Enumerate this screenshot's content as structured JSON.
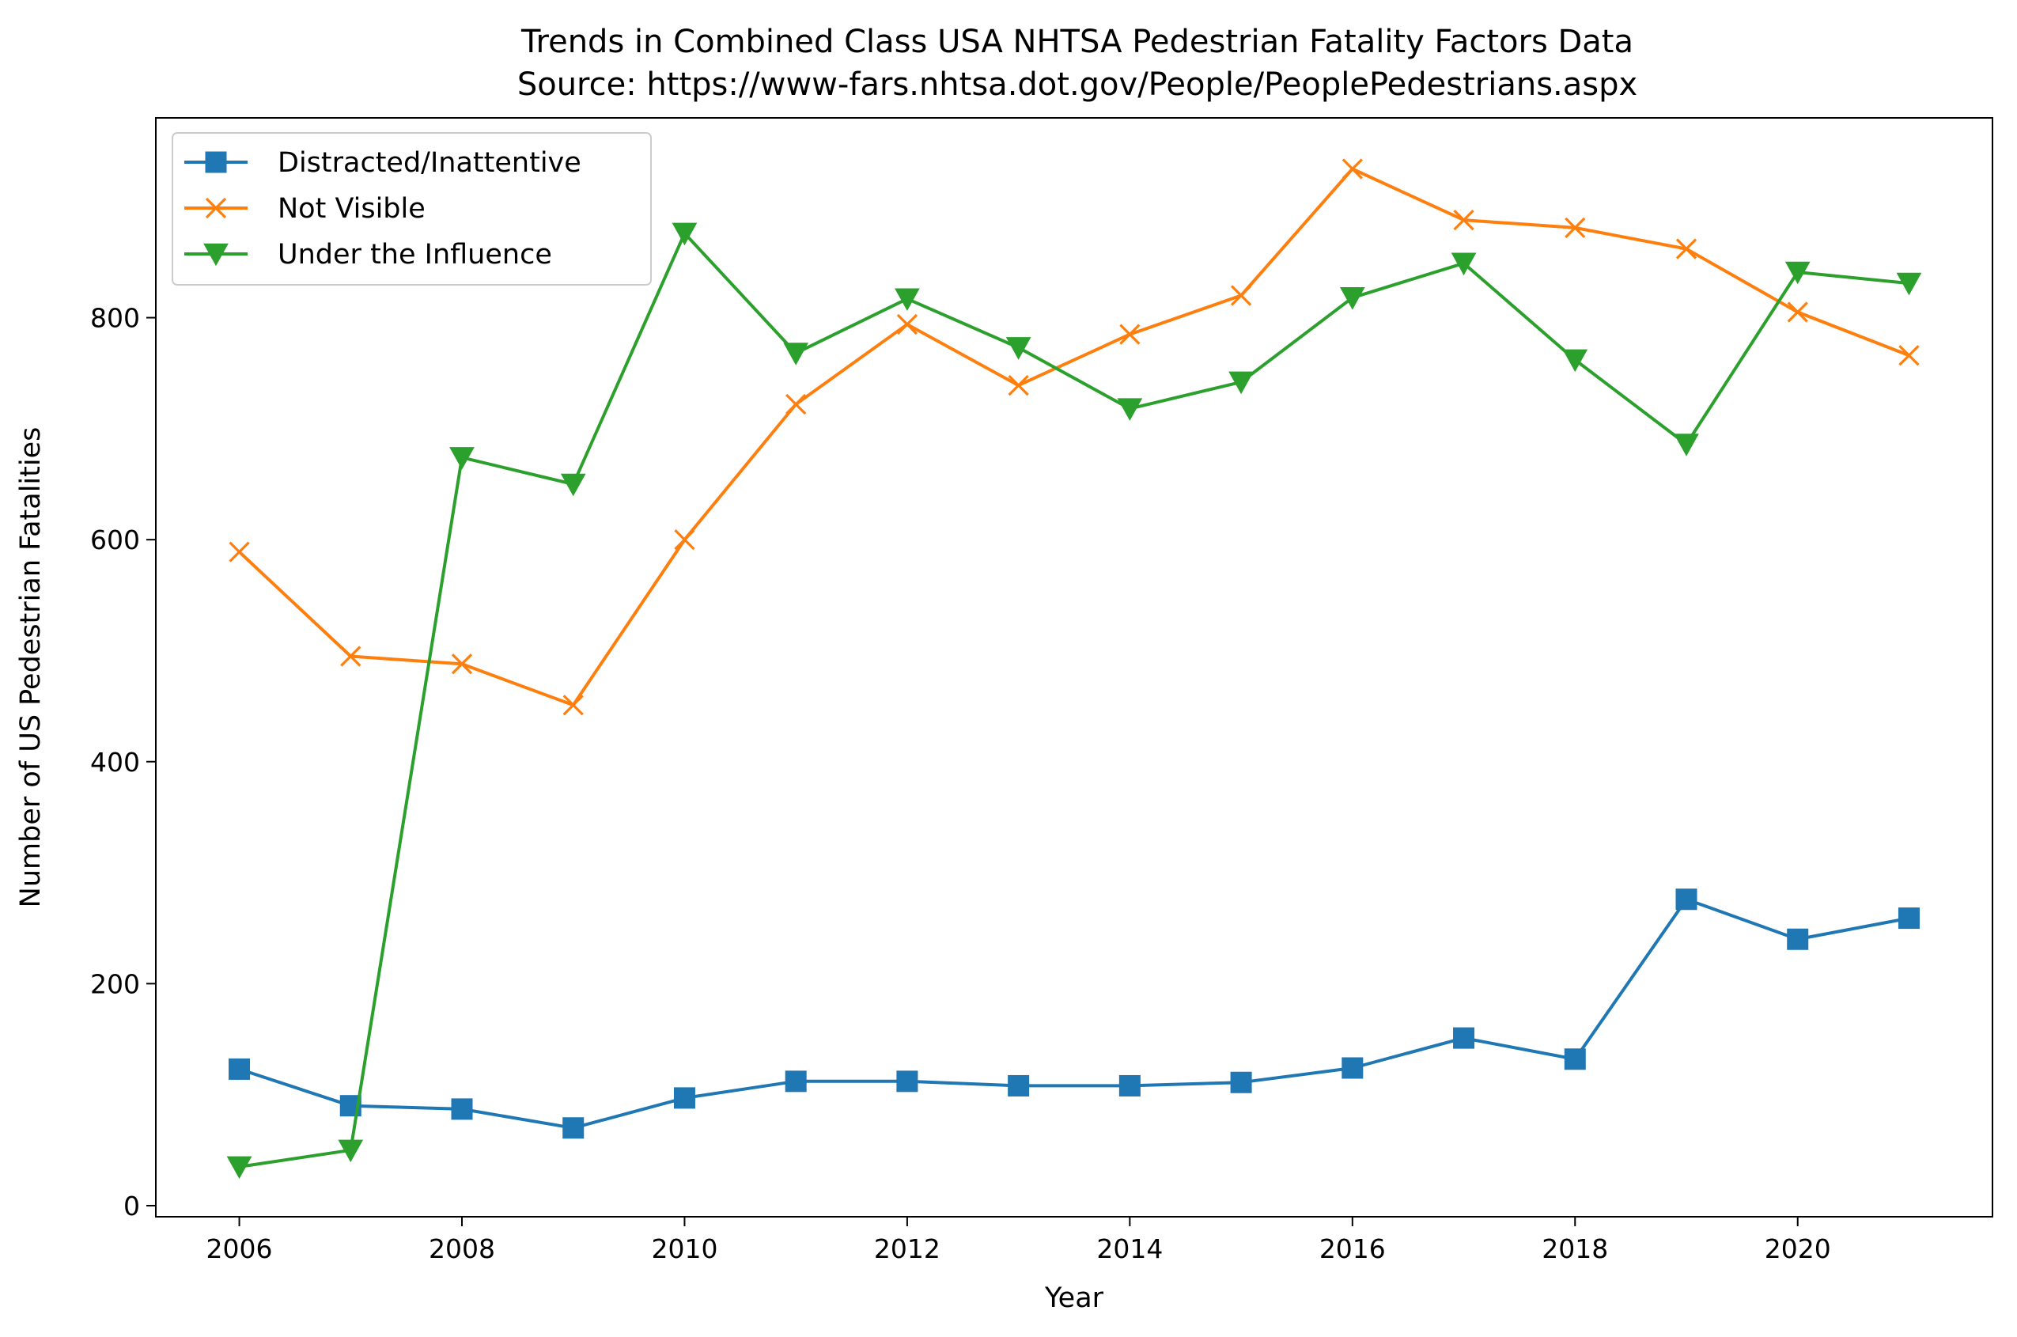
{
  "chart_data": {
    "type": "line",
    "title": "Trends in Combined Class USA NHTSA Pedestrian Fatality Factors Data",
    "subtitle": "Source: https://www-fars.nhtsa.dot.gov/People/PeoplePedestrians.aspx",
    "xlabel": "Year",
    "ylabel": "Number of US Pedestrian Fatalities",
    "xlim": [
      2005.25,
      2021.75
    ],
    "ylim": [
      -10,
      980
    ],
    "xticks": [
      2006,
      2008,
      2010,
      2012,
      2014,
      2016,
      2018,
      2020
    ],
    "yticks": [
      0,
      200,
      400,
      600,
      800
    ],
    "grid": false,
    "legend_position": "top-left",
    "x": [
      2006,
      2007,
      2008,
      2009,
      2010,
      2011,
      2012,
      2013,
      2014,
      2015,
      2016,
      2017,
      2018,
      2019,
      2020,
      2021
    ],
    "series": [
      {
        "name": "Distracted/Inattentive",
        "color": "#1f77b4",
        "marker": "square",
        "values": [
          123,
          90,
          87,
          70,
          97,
          112,
          112,
          108,
          108,
          111,
          124,
          151,
          132,
          276,
          240,
          259
        ]
      },
      {
        "name": "Not Visible",
        "color": "#ff7f0e",
        "marker": "x",
        "values": [
          589,
          495,
          488,
          451,
          600,
          722,
          794,
          739,
          785,
          820,
          934,
          888,
          881,
          862,
          805,
          766
        ]
      },
      {
        "name": "Under the Influence",
        "color": "#2ca02c",
        "marker": "triangle-down",
        "values": [
          35,
          50,
          674,
          650,
          876,
          768,
          817,
          773,
          718,
          742,
          818,
          849,
          762,
          686,
          841,
          831
        ]
      }
    ]
  }
}
